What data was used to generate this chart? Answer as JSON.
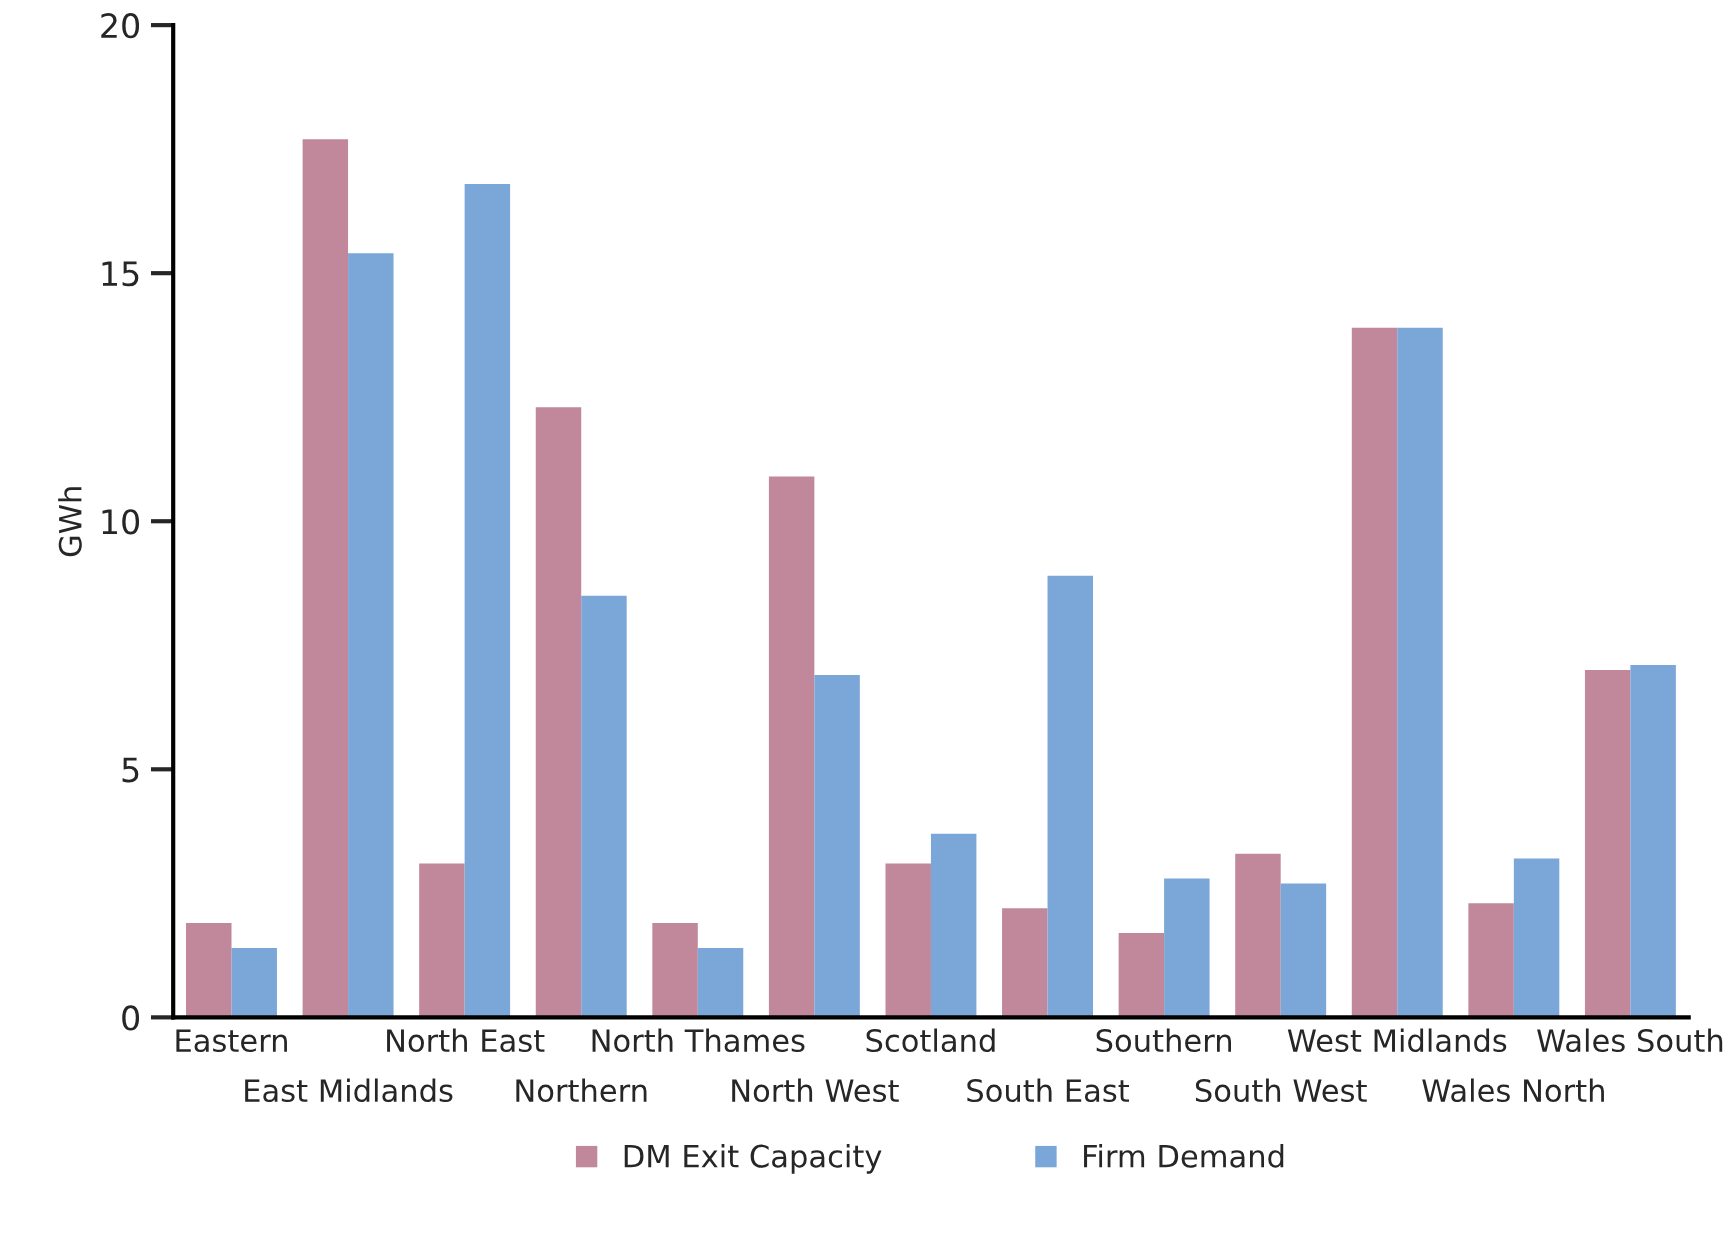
{
  "chart_data": {
    "type": "bar",
    "ylabel": "GWh",
    "categories": [
      "Eastern",
      "East Midlands",
      "North East",
      "Northern",
      "North Thames",
      "North West",
      "Scotland",
      "South East",
      "Southern",
      "South West",
      "West Midlands",
      "Wales North",
      "Wales South"
    ],
    "series": [
      {
        "name": "DM Exit Capacity",
        "color": "#c0889a",
        "values": [
          1.9,
          17.7,
          3.1,
          12.3,
          1.9,
          10.9,
          3.1,
          2.2,
          1.7,
          3.3,
          13.9,
          2.3,
          7.0
        ]
      },
      {
        "name": "Firm Demand",
        "color": "#7ba6d8",
        "values": [
          1.4,
          15.4,
          16.8,
          8.5,
          1.4,
          6.9,
          3.7,
          8.9,
          2.8,
          2.7,
          13.9,
          3.2,
          7.1
        ]
      }
    ],
    "ylim": [
      0,
      20
    ],
    "yticks": [
      0,
      5,
      10,
      15,
      20
    ],
    "grid": false,
    "legend": "bottom"
  }
}
